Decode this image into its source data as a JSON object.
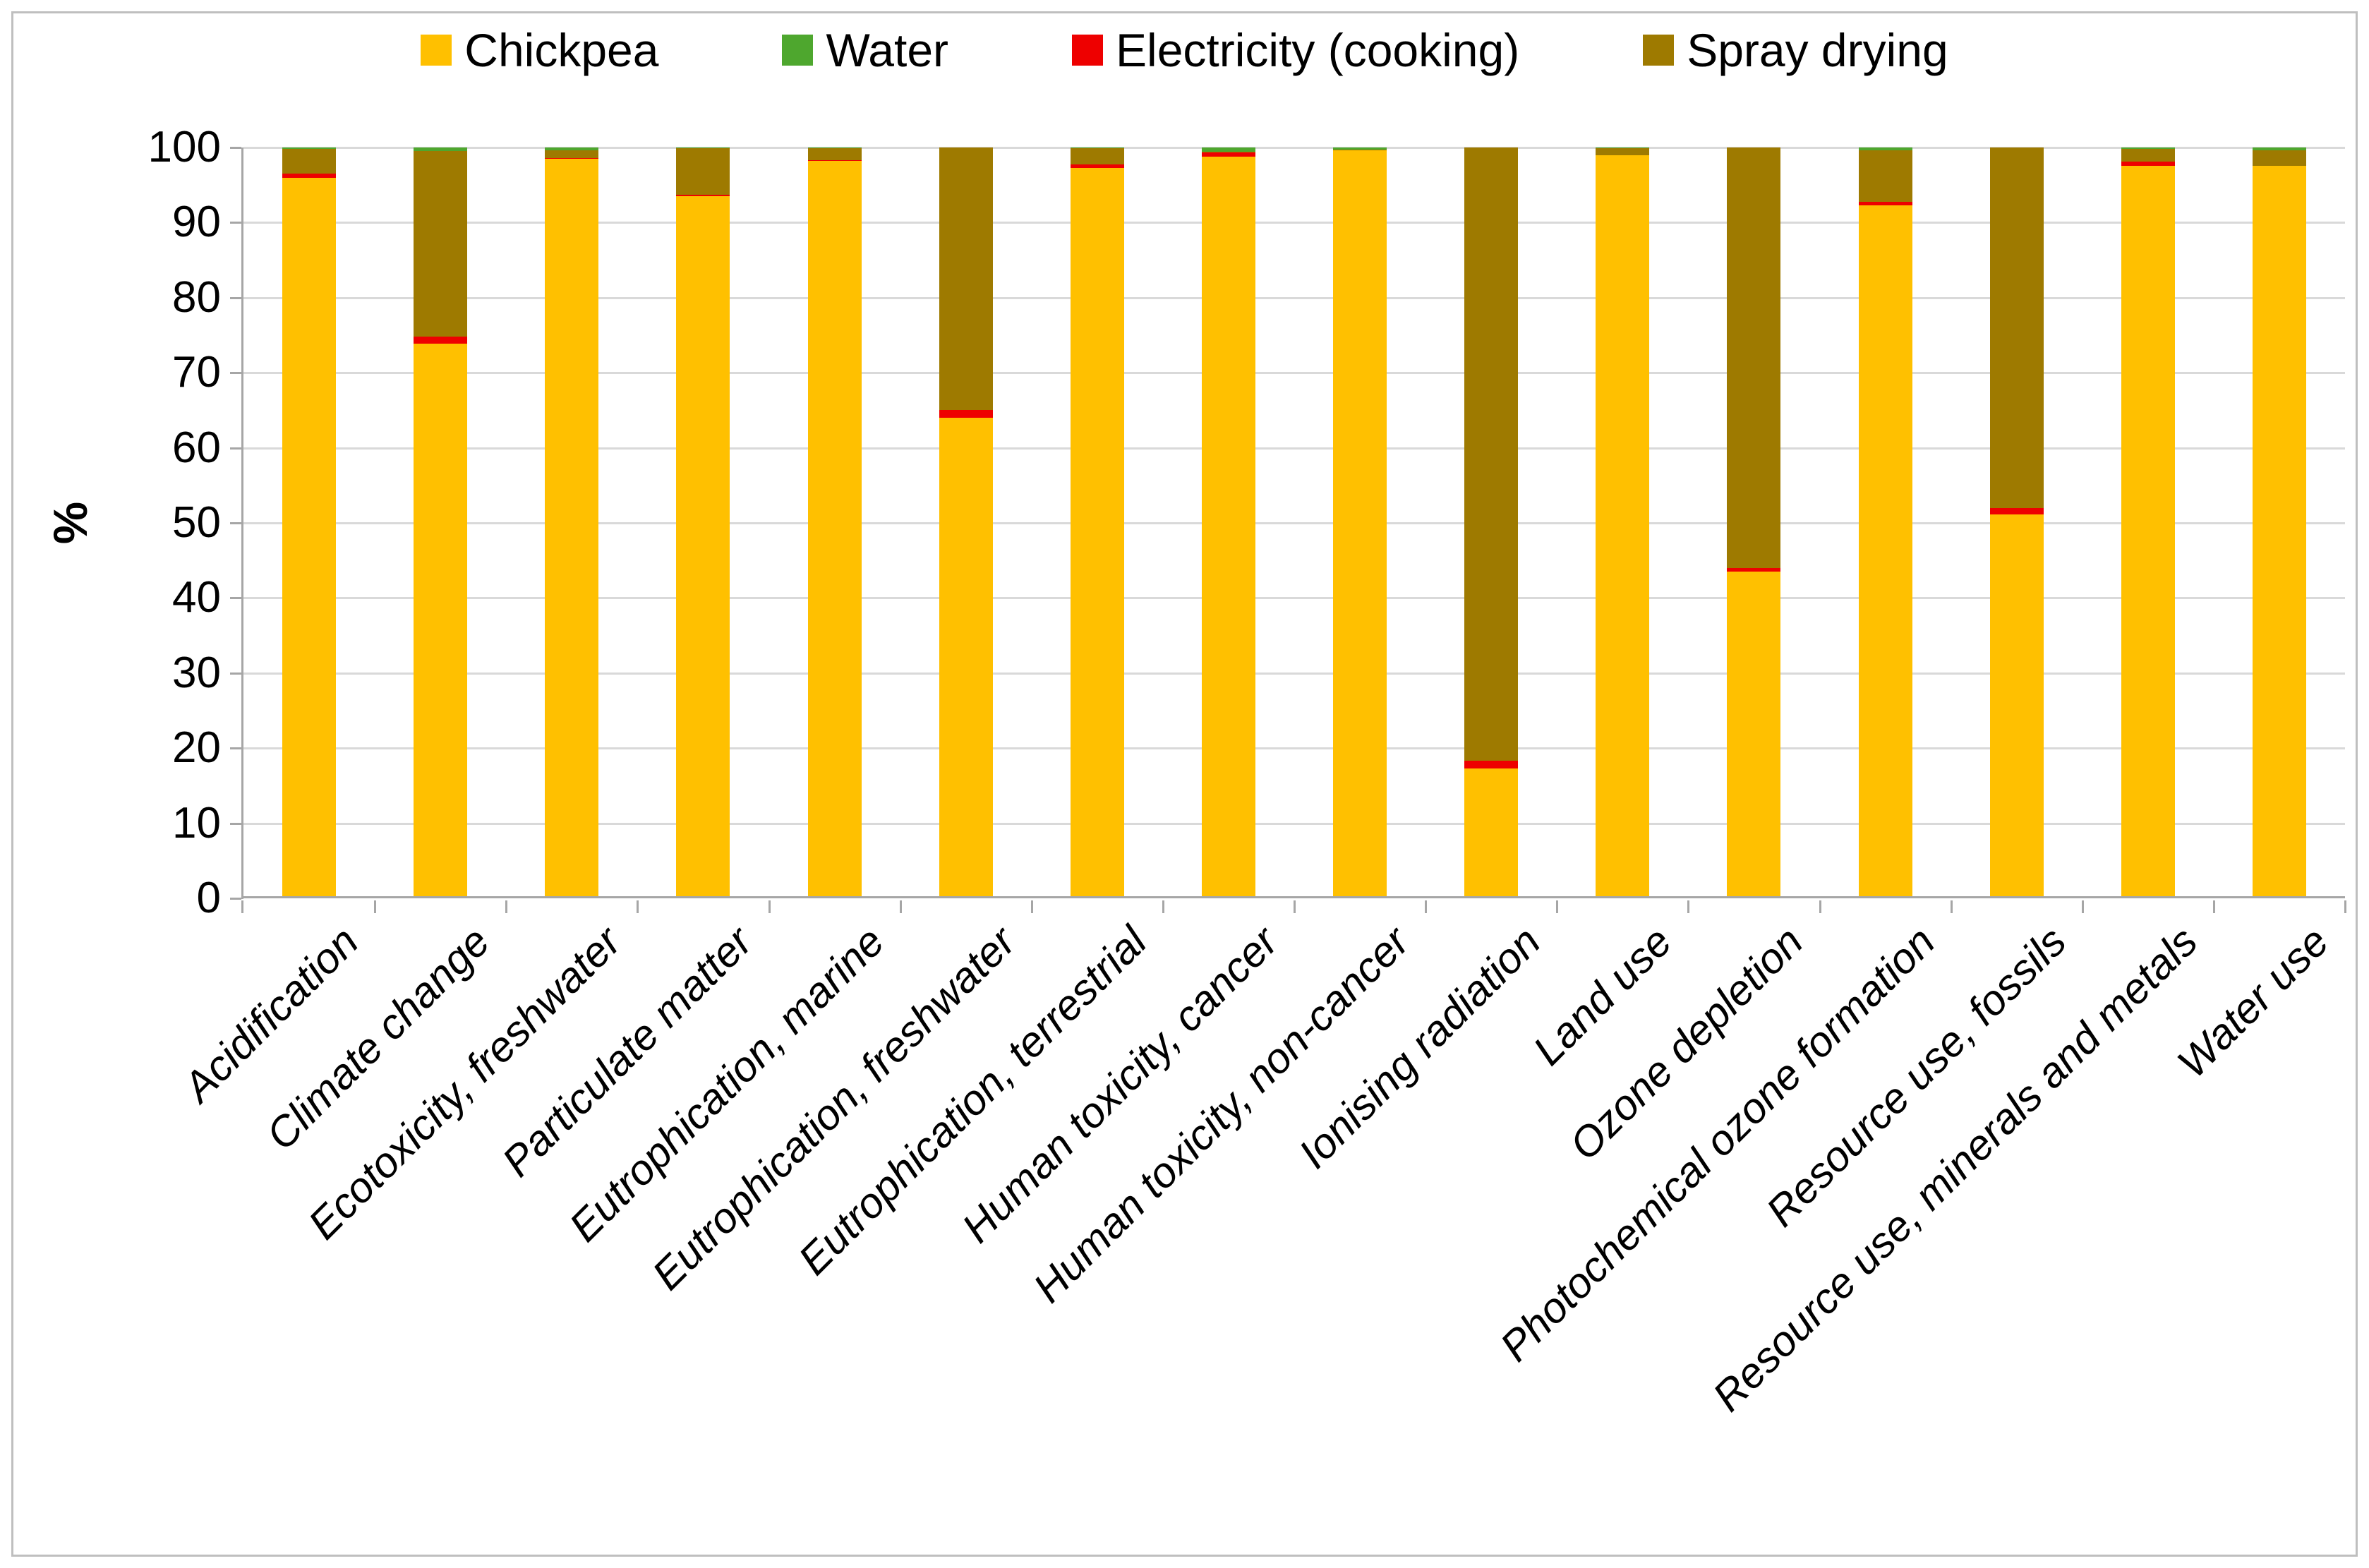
{
  "chart_data": {
    "type": "bar",
    "stacked": true,
    "title": "",
    "xlabel": "",
    "ylabel": "%",
    "ylim": [
      0,
      100
    ],
    "yticks": [
      0,
      10,
      20,
      30,
      40,
      50,
      60,
      70,
      80,
      90,
      100
    ],
    "grid": "horizontal",
    "legend_position": "top",
    "categories": [
      "Acidification",
      "Climate change",
      "Ecotoxicity, freshwater",
      "Particulate matter",
      "Eutrophication, marine",
      "Eutrophication, freshwater",
      "Eutrophication, terrestrial",
      "Human toxicity, cancer",
      "Human toxicity, non-cancer",
      "Ionising radiation",
      "Land use",
      "Ozone depletion",
      "Photochemical ozone formation",
      "Resource use, fossils",
      "Resource use, minerals and metals",
      "Water use"
    ],
    "series": [
      {
        "name": "Chickpea",
        "color": "#FFC000",
        "values": [
          96.0,
          73.9,
          98.5,
          93.5,
          98.2,
          64.0,
          97.3,
          98.8,
          99.6,
          17.3,
          99.0,
          43.5,
          92.3,
          51.1,
          97.6,
          97.6
        ]
      },
      {
        "name": "Water",
        "color": "#4EA72E",
        "values": [
          0.2,
          0.5,
          0.4,
          0.1,
          0.1,
          0.0,
          0.1,
          0.6,
          0.3,
          0.0,
          0.1,
          0.0,
          0.4,
          0.0,
          0.2,
          0.4
        ]
      },
      {
        "name": "Electricity (cooking)",
        "color": "#EE0000",
        "values": [
          0.5,
          0.9,
          0.1,
          0.2,
          0.1,
          1.0,
          0.4,
          0.5,
          0.0,
          1.0,
          0.0,
          0.5,
          0.5,
          0.9,
          0.5,
          0.0
        ]
      },
      {
        "name": "Spray drying",
        "color": "#9E7A00",
        "values": [
          3.3,
          24.7,
          1.0,
          6.2,
          1.6,
          35.0,
          2.2,
          0.1,
          0.1,
          81.7,
          0.9,
          56.0,
          6.8,
          48.0,
          1.7,
          2.0
        ]
      }
    ],
    "stack_order": [
      "Chickpea",
      "Electricity (cooking)",
      "Spray drying",
      "Water"
    ]
  },
  "axes": {
    "y_title": "%",
    "y_tick_labels": [
      "0",
      "10",
      "20",
      "30",
      "40",
      "50",
      "60",
      "70",
      "80",
      "90",
      "100"
    ]
  },
  "legend": {
    "items": [
      {
        "label": "Chickpea",
        "color": "#FFC000"
      },
      {
        "label": "Water",
        "color": "#4EA72E"
      },
      {
        "label": "Electricity (cooking)",
        "color": "#EE0000"
      },
      {
        "label": "Spray drying",
        "color": "#9E7A00"
      }
    ]
  },
  "style_colors": {
    "gridline": "#d9d9d9",
    "axis": "#a6a6a6",
    "frame_border": "#bfbfbf",
    "text": "#000000"
  }
}
